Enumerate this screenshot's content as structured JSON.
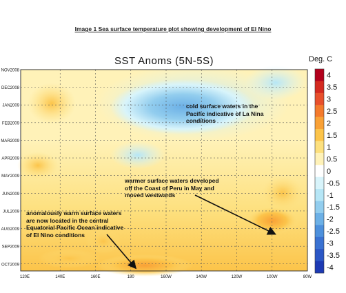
{
  "caption": "Image 1 Sea surface temperature plot showing development of El Nino",
  "chart_data": {
    "type": "heatmap",
    "title": "SST Anoms (5N-5S)",
    "unit_label": "Deg. C",
    "y_ticks": [
      "NOV2008",
      "DEC2008",
      "JAN2009",
      "FEB2009",
      "MAR2009",
      "APR2009",
      "MAY2009",
      "JUN2009",
      "JUL2009",
      "AUG2009",
      "SEP2009",
      "OCT2009"
    ],
    "x_ticks": [
      "120E",
      "140E",
      "160E",
      "180",
      "160W",
      "140W",
      "120W",
      "100W",
      "80W"
    ],
    "colorbar_ticks": [
      "4",
      "3.5",
      "3",
      "2.5",
      "2",
      "1.5",
      "1",
      "0.5",
      "0",
      "-0.5",
      "-1",
      "-1.5",
      "-2",
      "-2.5",
      "-3",
      "-3.5",
      "-4"
    ],
    "colorbar_colors": [
      "#b2001c",
      "#d42a20",
      "#e8502c",
      "#f47a2c",
      "#f9a136",
      "#fcc44a",
      "#fde07e",
      "#fff2b8",
      "#ffffff",
      "#d8f4fb",
      "#b6e6f6",
      "#92cdee",
      "#6cb0e6",
      "#4d90dc",
      "#3a72d2",
      "#2b57c6",
      "#1d3ab4"
    ],
    "grid": true,
    "annotations": [
      {
        "id": "lanina",
        "lines": [
          "cold surface waters in the",
          "Pacific indicative of La Nina",
          "conditions"
        ]
      },
      {
        "id": "peru",
        "lines": [
          "warmer surface waters developed",
          "off the Coast of Peru in May and",
          "moved westwards"
        ]
      },
      {
        "id": "elnino",
        "lines": [
          "anomalously warm surface waters",
          "are now located in the central",
          "Equatorial Pacific Ocean indicative",
          "of El Nino conditions"
        ]
      }
    ]
  }
}
